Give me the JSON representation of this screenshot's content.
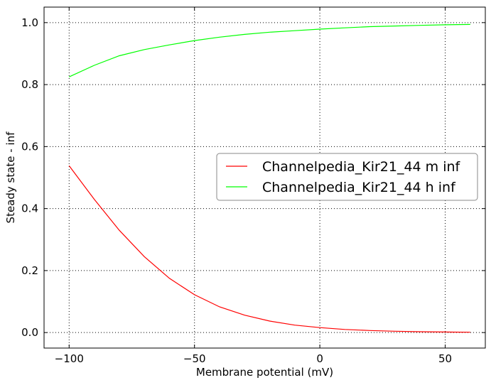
{
  "chart_data": {
    "type": "line",
    "xlabel": "Membrane potential (mV)",
    "ylabel": "Steady state - inf",
    "xlim": [
      -110,
      66
    ],
    "ylim": [
      -0.05,
      1.05
    ],
    "x_ticks": [
      -100,
      -50,
      0,
      50
    ],
    "x_tick_labels": [
      "−100",
      "−50",
      "0",
      "50"
    ],
    "y_ticks": [
      0.0,
      0.2,
      0.4,
      0.6,
      0.8,
      1.0
    ],
    "y_tick_labels": [
      "0.0",
      "0.2",
      "0.4",
      "0.6",
      "0.8",
      "1.0"
    ],
    "grid": true,
    "legend_position": "center-right",
    "x": [
      -100,
      -90,
      -80,
      -70,
      -60,
      -50,
      -40,
      -30,
      -20,
      -10,
      0,
      10,
      20,
      30,
      40,
      50,
      60
    ],
    "series": [
      {
        "name": "Channelpedia_Kir21_44 m inf",
        "color": "#ff0000",
        "values": [
          0.538,
          0.43,
          0.33,
          0.245,
          0.175,
          0.122,
          0.083,
          0.056,
          0.037,
          0.024,
          0.016,
          0.01,
          0.0065,
          0.0042,
          0.0027,
          0.0017,
          0.0011
        ]
      },
      {
        "name": "Channelpedia_Kir21_44 h inf",
        "color": "#00ff00",
        "values": [
          0.825,
          0.862,
          0.893,
          0.913,
          0.928,
          0.942,
          0.953,
          0.962,
          0.969,
          0.974,
          0.979,
          0.983,
          0.987,
          0.989,
          0.991,
          0.993,
          0.994
        ]
      }
    ]
  }
}
